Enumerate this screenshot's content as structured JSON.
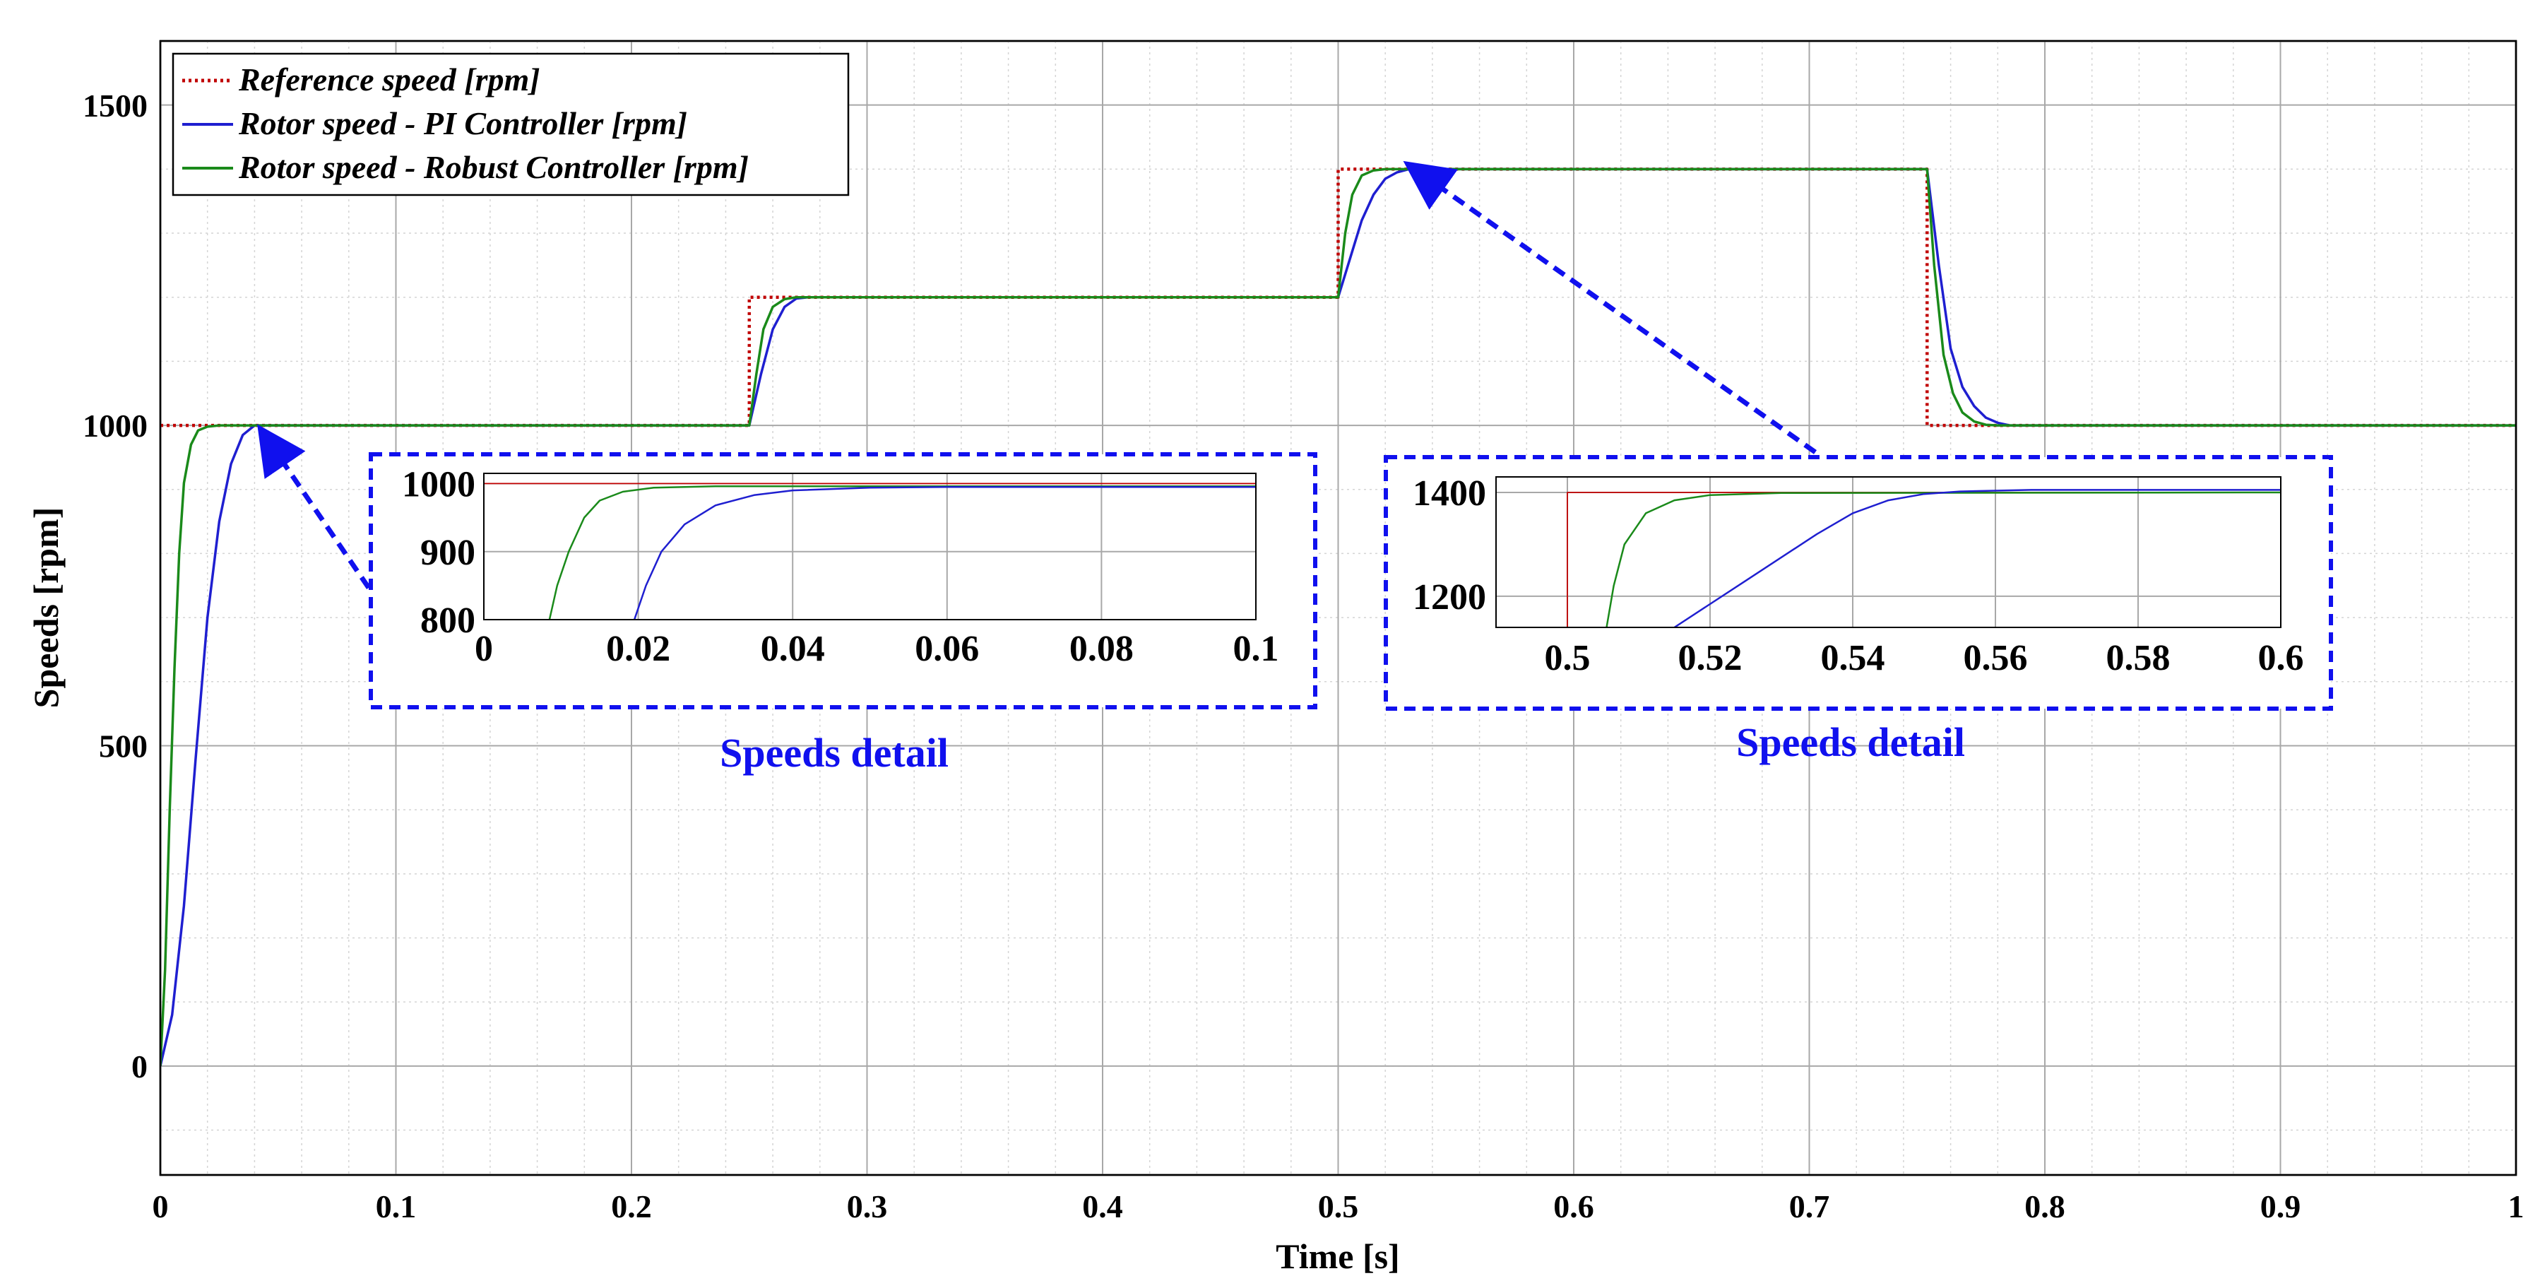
{
  "chart_data": {
    "type": "line",
    "main": {
      "xlabel": "Time [s]",
      "ylabel": "Speeds [rpm]",
      "xlim": [
        0,
        1
      ],
      "ylim": [
        -170,
        1600
      ],
      "xticks": [
        0,
        0.1,
        0.2,
        0.3,
        0.4,
        0.5,
        0.6,
        0.7,
        0.8,
        0.9,
        1
      ],
      "xtick_labels": [
        "0",
        "0.1",
        "0.2",
        "0.3",
        "0.4",
        "0.5",
        "0.6",
        "0.7",
        "0.8",
        "0.9",
        "1"
      ],
      "yticks": [
        0,
        500,
        1000,
        1500
      ],
      "ytick_labels": [
        "0",
        "500",
        "1000",
        "1500"
      ],
      "grid": true,
      "legend_position": "top-left",
      "series": [
        {
          "name": "Reference speed [rpm]",
          "color": "#c00000",
          "style": "dotted",
          "points": [
            [
              0,
              1000
            ],
            [
              0.25,
              1000
            ],
            [
              0.25,
              1200
            ],
            [
              0.5,
              1200
            ],
            [
              0.5,
              1400
            ],
            [
              0.75,
              1400
            ],
            [
              0.75,
              1000
            ],
            [
              1,
              1000
            ]
          ]
        },
        {
          "name": "Rotor speed - PI Controller [rpm]",
          "color": "#1f1fd0",
          "style": "solid",
          "points": [
            [
              0,
              0
            ],
            [
              0.005,
              80
            ],
            [
              0.01,
              250
            ],
            [
              0.015,
              480
            ],
            [
              0.02,
              700
            ],
            [
              0.025,
              850
            ],
            [
              0.03,
              940
            ],
            [
              0.035,
              985
            ],
            [
              0.04,
              1000
            ],
            [
              0.25,
              1000
            ],
            [
              0.255,
              1080
            ],
            [
              0.26,
              1150
            ],
            [
              0.265,
              1185
            ],
            [
              0.27,
              1198
            ],
            [
              0.275,
              1200
            ],
            [
              0.5,
              1200
            ],
            [
              0.505,
              1260
            ],
            [
              0.51,
              1320
            ],
            [
              0.515,
              1360
            ],
            [
              0.52,
              1385
            ],
            [
              0.525,
              1395
            ],
            [
              0.53,
              1400
            ],
            [
              0.75,
              1400
            ],
            [
              0.755,
              1250
            ],
            [
              0.76,
              1120
            ],
            [
              0.765,
              1060
            ],
            [
              0.77,
              1030
            ],
            [
              0.775,
              1012
            ],
            [
              0.78,
              1004
            ],
            [
              0.785,
              1000
            ],
            [
              1,
              1000
            ]
          ]
        },
        {
          "name": "Rotor speed - Robust Controller [rpm]",
          "color": "#1a8a1a",
          "style": "solid",
          "points": [
            [
              0,
              0
            ],
            [
              0.002,
              150
            ],
            [
              0.004,
              400
            ],
            [
              0.006,
              620
            ],
            [
              0.008,
              800
            ],
            [
              0.01,
              910
            ],
            [
              0.013,
              970
            ],
            [
              0.016,
              992
            ],
            [
              0.02,
              998
            ],
            [
              0.025,
              1000
            ],
            [
              0.25,
              1000
            ],
            [
              0.253,
              1080
            ],
            [
              0.256,
              1150
            ],
            [
              0.26,
              1185
            ],
            [
              0.265,
              1197
            ],
            [
              0.27,
              1200
            ],
            [
              0.5,
              1200
            ],
            [
              0.503,
              1300
            ],
            [
              0.506,
              1360
            ],
            [
              0.51,
              1390
            ],
            [
              0.515,
              1398
            ],
            [
              0.52,
              1400
            ],
            [
              0.75,
              1400
            ],
            [
              0.753,
              1250
            ],
            [
              0.757,
              1110
            ],
            [
              0.761,
              1050
            ],
            [
              0.765,
              1020
            ],
            [
              0.77,
              1006
            ],
            [
              0.775,
              1001
            ],
            [
              0.78,
              1000
            ],
            [
              1,
              1000
            ]
          ]
        }
      ]
    },
    "insets": [
      {
        "name": "inset-left",
        "caption": "Speeds detail",
        "xlim": [
          0,
          0.1
        ],
        "ylim": [
          800,
          1015
        ],
        "xticks": [
          0,
          0.02,
          0.04,
          0.06,
          0.08,
          0.1
        ],
        "xtick_labels": [
          "0",
          "0.02",
          "0.04",
          "0.06",
          "0.08",
          "0.1"
        ],
        "yticks": [
          800,
          900,
          1000
        ],
        "ytick_labels": [
          "800",
          "900",
          "1000"
        ],
        "series": [
          {
            "name": "Reference speed [rpm]",
            "color": "#c00000",
            "style": "solid-thin",
            "points": [
              [
                0,
                1000
              ],
              [
                0.1,
                1000
              ]
            ]
          },
          {
            "name": "Rotor speed - Robust Controller [rpm]",
            "color": "#1a8a1a",
            "style": "solid",
            "points": [
              [
                0.0085,
                800
              ],
              [
                0.0095,
                850
              ],
              [
                0.011,
                900
              ],
              [
                0.013,
                950
              ],
              [
                0.015,
                975
              ],
              [
                0.018,
                988
              ],
              [
                0.022,
                994
              ],
              [
                0.03,
                996
              ],
              [
                0.1,
                996
              ]
            ]
          },
          {
            "name": "Rotor speed - PI Controller [rpm]",
            "color": "#1f1fd0",
            "style": "solid",
            "points": [
              [
                0.0195,
                800
              ],
              [
                0.021,
                850
              ],
              [
                0.023,
                900
              ],
              [
                0.026,
                940
              ],
              [
                0.03,
                968
              ],
              [
                0.035,
                983
              ],
              [
                0.04,
                990
              ],
              [
                0.05,
                994
              ],
              [
                0.06,
                995
              ],
              [
                0.1,
                995
              ]
            ]
          }
        ]
      },
      {
        "name": "inset-right",
        "caption": "Speeds detail",
        "xlim": [
          0.49,
          0.6
        ],
        "ylim": [
          1140,
          1430
        ],
        "xticks": [
          0.5,
          0.52,
          0.54,
          0.56,
          0.58,
          0.6
        ],
        "xtick_labels": [
          "0.5",
          "0.52",
          "0.54",
          "0.56",
          "0.58",
          "0.6"
        ],
        "yticks": [
          1200,
          1400
        ],
        "ytick_labels": [
          "1200",
          "1400"
        ],
        "series": [
          {
            "name": "Reference speed [rpm]",
            "color": "#c00000",
            "style": "solid-thin",
            "points": [
              [
                0.5,
                1140
              ],
              [
                0.5,
                1400
              ],
              [
                0.6,
                1400
              ]
            ]
          },
          {
            "name": "Rotor speed - Robust Controller [rpm]",
            "color": "#1a8a1a",
            "style": "solid",
            "points": [
              [
                0.5055,
                1140
              ],
              [
                0.5065,
                1220
              ],
              [
                0.508,
                1300
              ],
              [
                0.511,
                1360
              ],
              [
                0.515,
                1385
              ],
              [
                0.52,
                1395
              ],
              [
                0.53,
                1399
              ],
              [
                0.6,
                1400
              ]
            ]
          },
          {
            "name": "Rotor speed - PI Controller [rpm]",
            "color": "#1f1fd0",
            "style": "solid",
            "points": [
              [
                0.515,
                1140
              ],
              [
                0.525,
                1230
              ],
              [
                0.535,
                1320
              ],
              [
                0.54,
                1360
              ],
              [
                0.545,
                1385
              ],
              [
                0.55,
                1397
              ],
              [
                0.555,
                1402
              ],
              [
                0.565,
                1405
              ],
              [
                0.6,
                1405
              ]
            ]
          }
        ]
      }
    ]
  }
}
